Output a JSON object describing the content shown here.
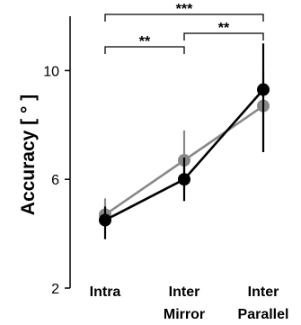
{
  "chart_data": {
    "type": "line",
    "ylabel": "Accuracy [ ° ]",
    "categories": [
      [
        "Intra"
      ],
      [
        "Inter",
        "Mirror"
      ],
      [
        "Inter",
        "Parallel"
      ]
    ],
    "y_ticks": [
      2,
      6,
      10
    ],
    "ylim": [
      2,
      12
    ],
    "series": [
      {
        "color": "#000000",
        "values": [
          4.5,
          6.0,
          9.3
        ],
        "err_low": [
          3.8,
          5.2,
          7.0
        ],
        "err_high": [
          5.0,
          6.8,
          11.0
        ]
      },
      {
        "color": "#888888",
        "values": [
          4.7,
          6.7,
          8.7
        ],
        "err_low": [
          4.3,
          5.6,
          7.0
        ],
        "err_high": [
          5.3,
          7.8,
          10.0
        ]
      }
    ],
    "significance": [
      {
        "from": 0,
        "to": 2,
        "label": "***"
      },
      {
        "from": 0,
        "to": 1,
        "label": "**"
      },
      {
        "from": 1,
        "to": 2,
        "label": "**"
      }
    ]
  }
}
